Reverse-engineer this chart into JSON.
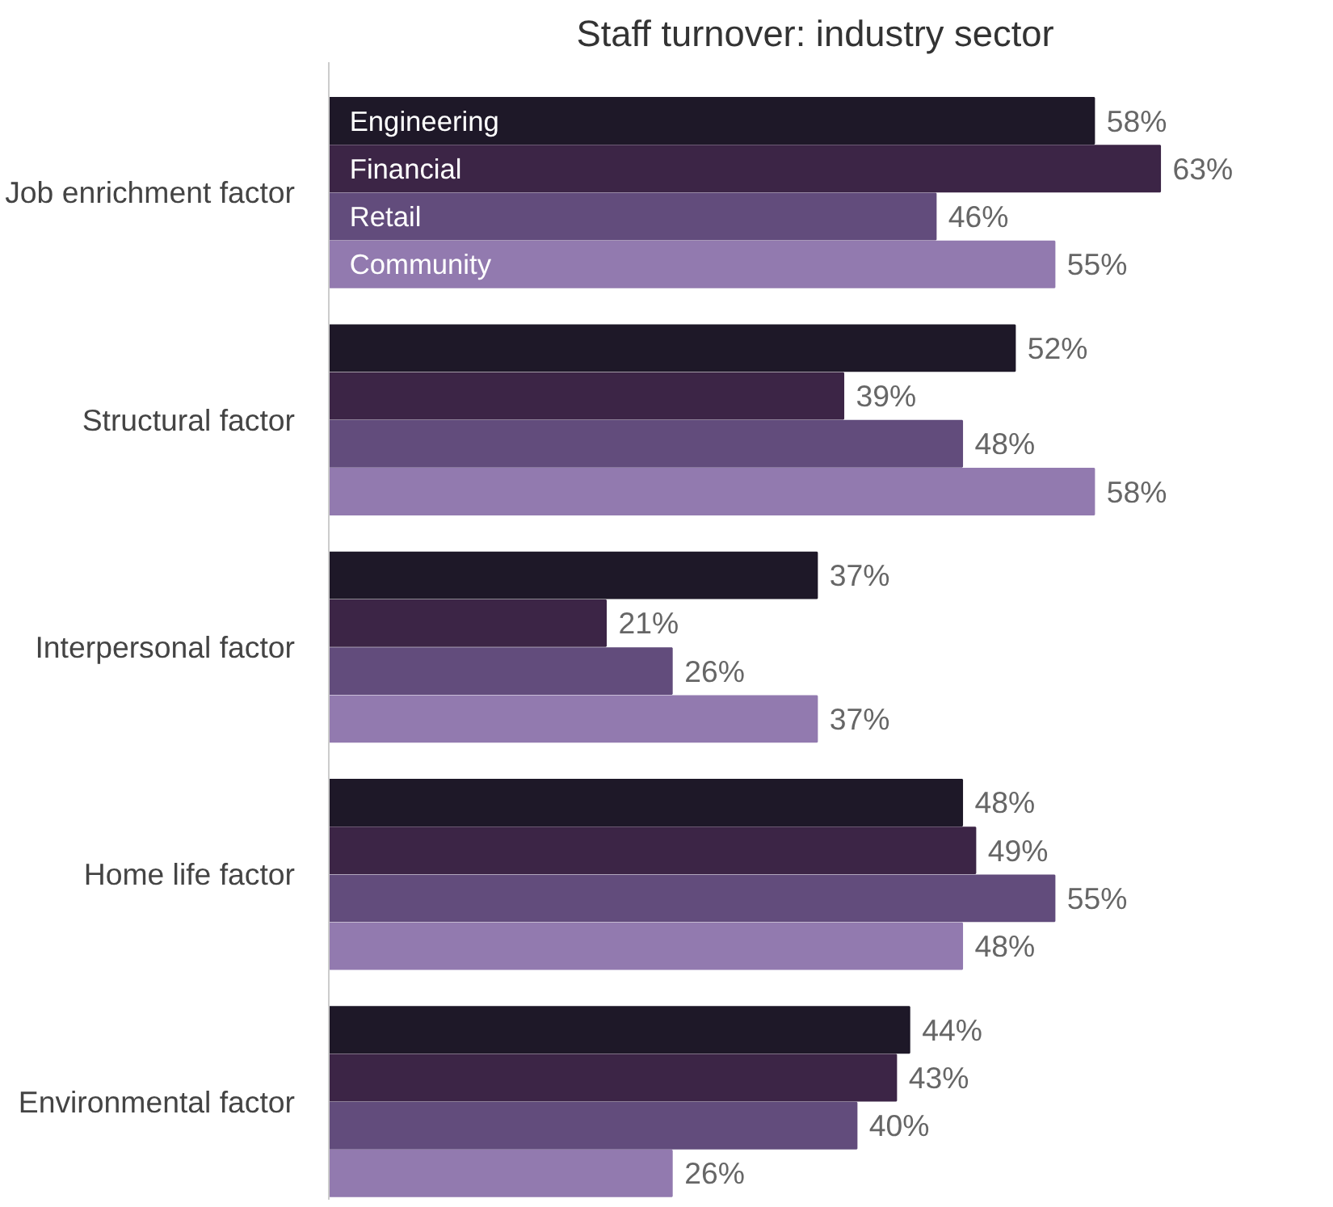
{
  "chart_data": {
    "type": "bar",
    "orientation": "horizontal",
    "title": "Staff turnover: industry sector",
    "categories": [
      "Job enrichment factor",
      "Structural factor",
      "Interpersonal factor",
      "Home life factor",
      "Environmental factor"
    ],
    "series": [
      {
        "name": "Engineering",
        "color": "#1e1828",
        "values": [
          58,
          52,
          37,
          48,
          44
        ],
        "value_labels": [
          "58%",
          "52%",
          "37%",
          "48%",
          "44%"
        ]
      },
      {
        "name": "Financial",
        "color": "#3c2546",
        "values": [
          63,
          39,
          21,
          49,
          43
        ],
        "value_labels": [
          "63%",
          "39%",
          "21%",
          "49%",
          "43%"
        ]
      },
      {
        "name": "Retail",
        "color": "#624c7c",
        "values": [
          46,
          48,
          26,
          55,
          40
        ],
        "value_labels": [
          "46%",
          "48%",
          "26%",
          "55%",
          "40%"
        ]
      },
      {
        "name": "Community",
        "color": "#927aaf",
        "values": [
          55,
          58,
          37,
          48,
          26
        ],
        "value_labels": [
          "55%",
          "58%",
          "37%",
          "48%",
          "26%"
        ]
      }
    ],
    "grid": false,
    "legend": false
  }
}
